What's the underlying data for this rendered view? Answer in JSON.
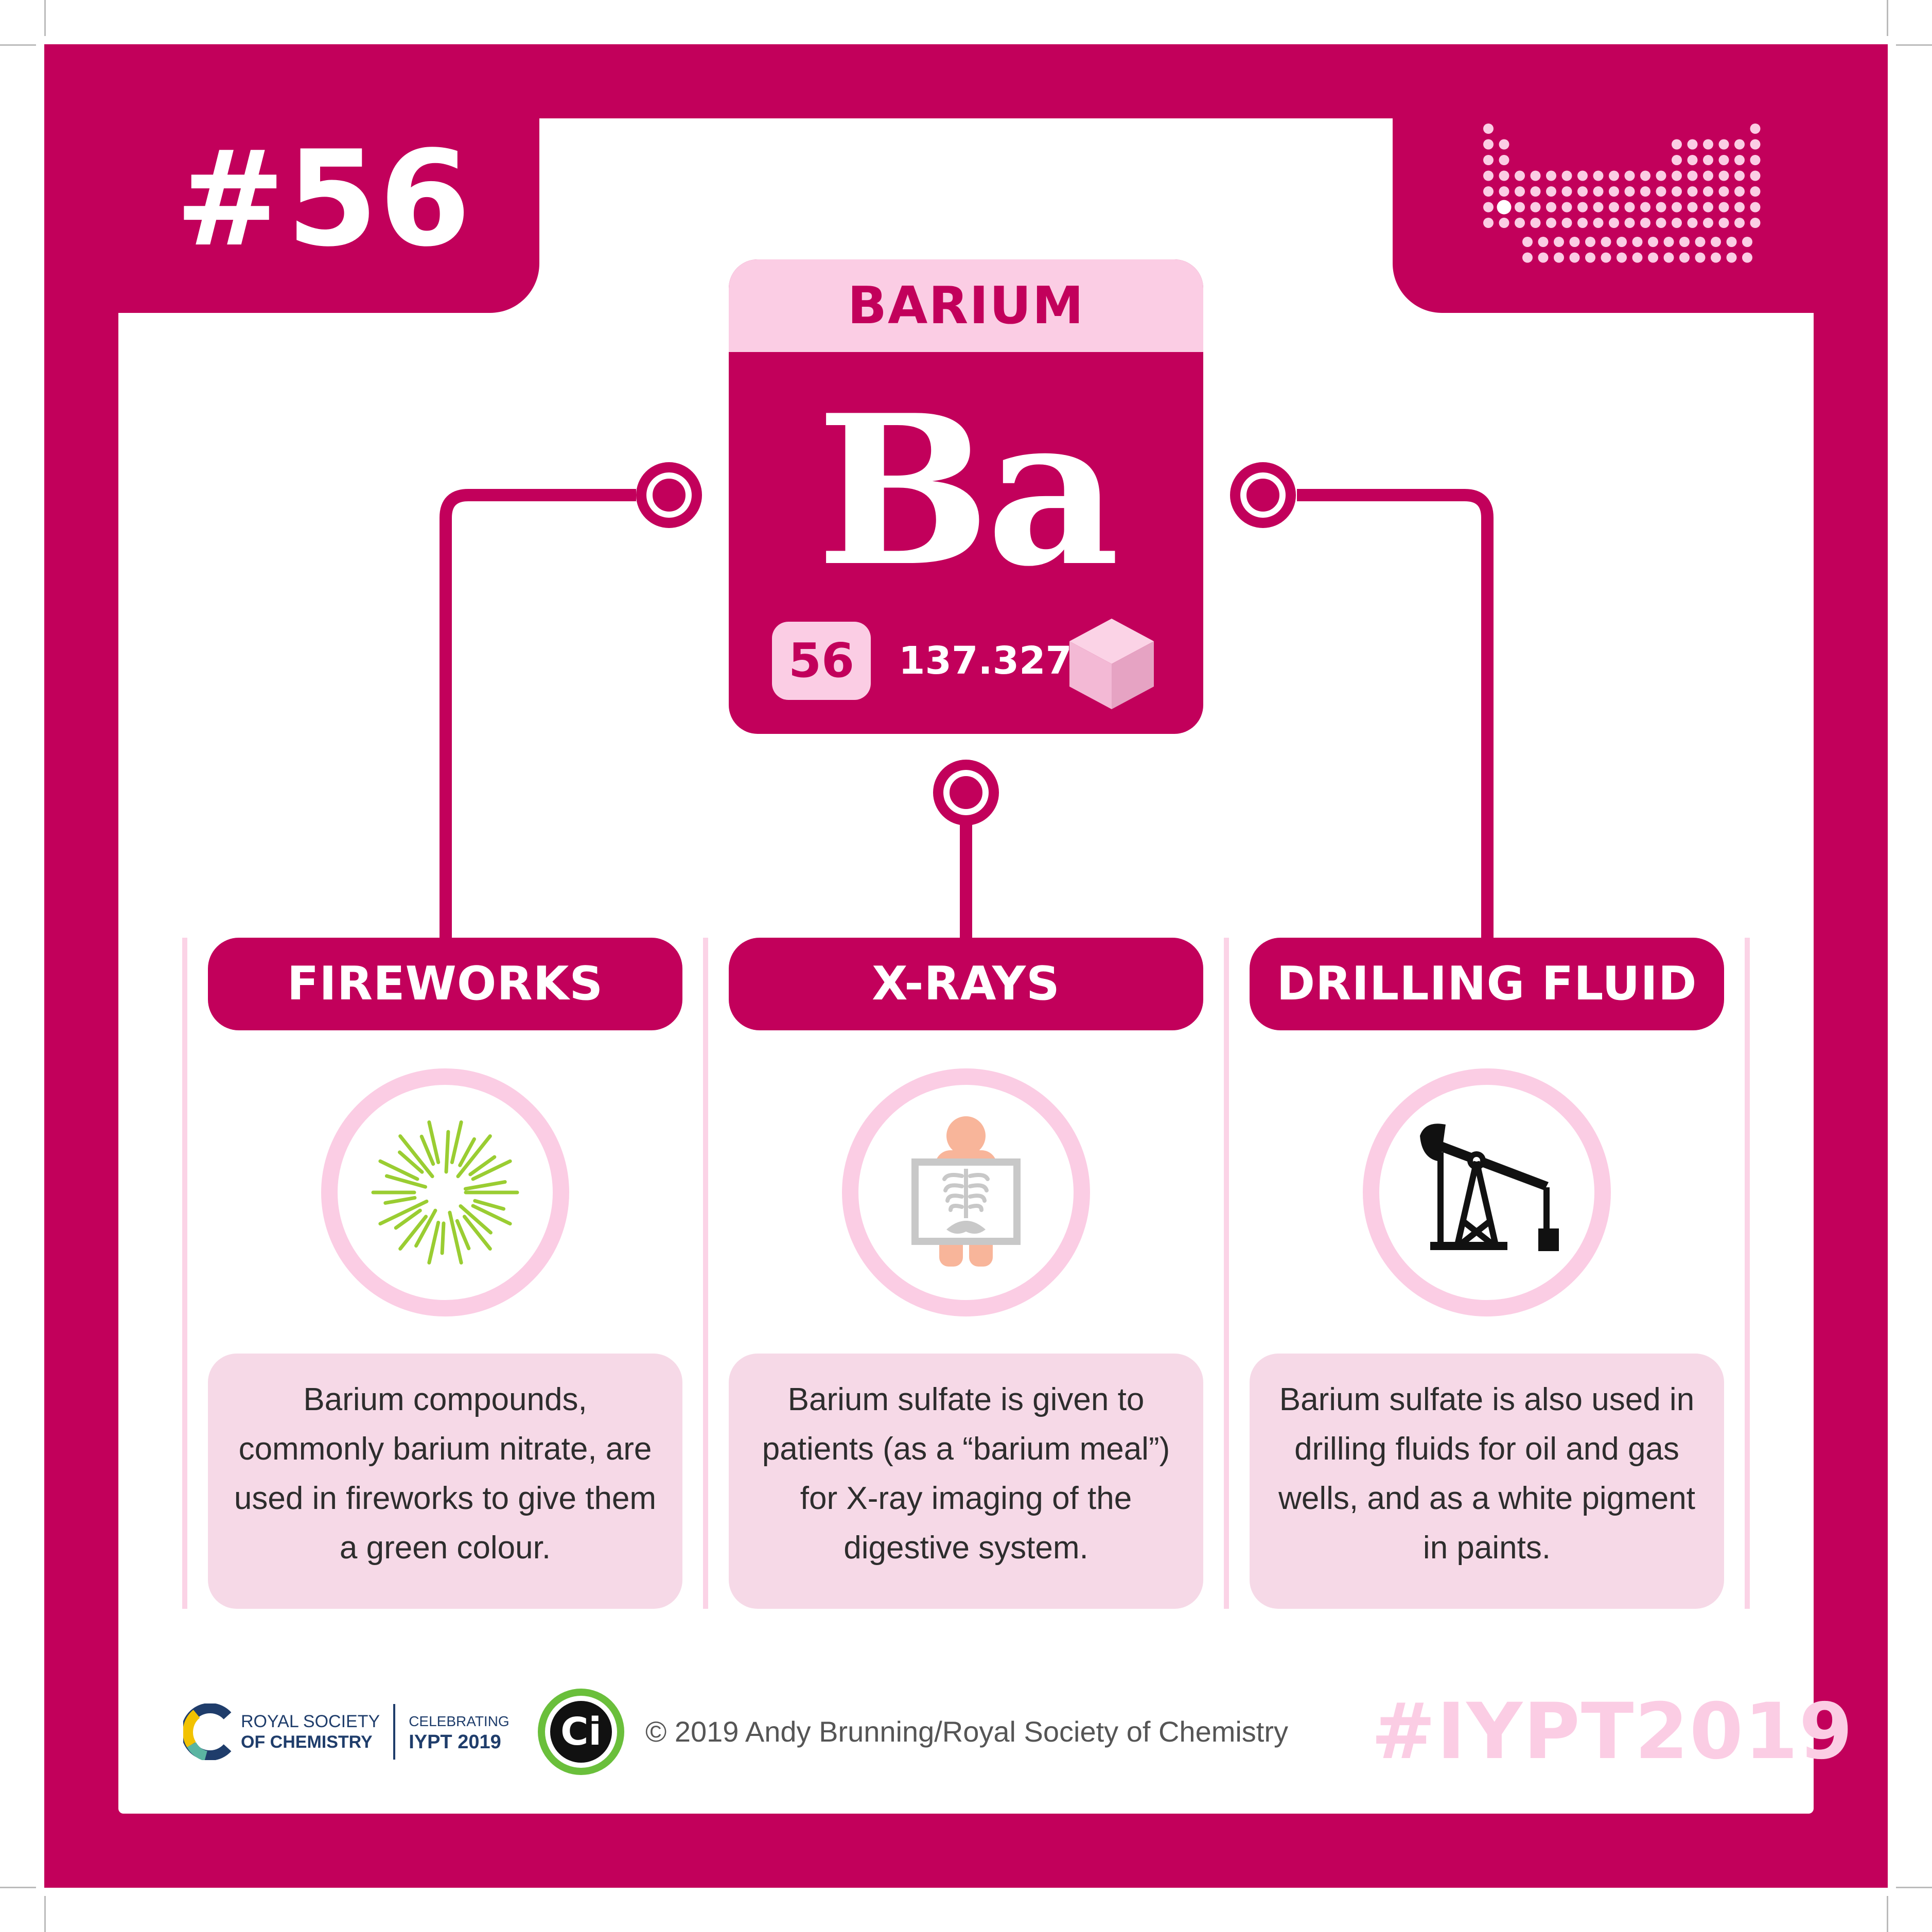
{
  "number_badge": "#56",
  "element": {
    "name": "BARIUM",
    "symbol": "Ba",
    "atomic_number": "56",
    "atomic_mass": "137.327"
  },
  "uses": [
    {
      "title": "FIREWORKS",
      "icon": "fireworks-icon",
      "description": "Barium compounds, commonly barium nitrate, are used in fireworks to give them a green colour."
    },
    {
      "title": "X-RAYS",
      "icon": "xray-icon",
      "description": "Barium sulfate is given to patients (as a “barium meal”) for X-ray imaging of the digestive system."
    },
    {
      "title": "DRILLING FLUID",
      "icon": "oil-pump-icon",
      "description": "Barium sulfate is also used in drilling fluids for oil and gas wells, and as a white pigment in paints."
    }
  ],
  "footer": {
    "rsc_line1": "ROYAL SOCIETY",
    "rsc_line2": "OF CHEMISTRY",
    "celebrating_line1": "CELEBRATING",
    "celebrating_line2": "IYPT 2019",
    "ci_logo_text": "Ci",
    "copyright": "© 2019 Andy Brunning/Royal Society of Chemistry",
    "hashtag": "#IYPT2019"
  },
  "colors": {
    "primary": "#c2005b",
    "light_pink": "#fbcde4",
    "panel_pink": "#f6d9e7",
    "firework_green": "#9acd32",
    "ci_green": "#6abf3b"
  }
}
